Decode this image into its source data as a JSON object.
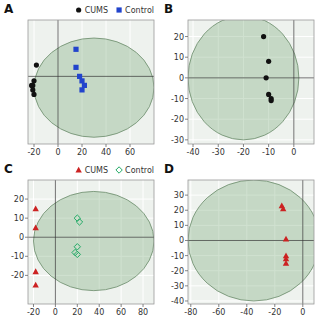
{
  "chart_data": [
    {
      "type": "scatter",
      "title": "A",
      "xlim": [
        -25,
        80
      ],
      "ylim": [
        -30,
        25
      ],
      "xticks": [
        -20,
        0,
        20,
        40,
        60
      ],
      "yticks": [],
      "tick_labels": "x",
      "grid": true,
      "legend": "upper right",
      "ellipse": {
        "cx": 30,
        "cy": -5,
        "rx": 50,
        "ry": 22
      },
      "hline": 0,
      "vline": 0,
      "series": [
        {
          "name": "CUMS",
          "color": "#111111",
          "marker": "circle",
          "x": [
            -20,
            -21,
            -21,
            -20,
            -22,
            -18
          ],
          "values": [
            -2,
            -4,
            -6,
            -8,
            -4,
            5
          ]
        },
        {
          "name": "Control",
          "color": "#2244cc",
          "marker": "square",
          "x": [
            15,
            15,
            18,
            20,
            22,
            20
          ],
          "values": [
            12,
            4,
            0,
            -2,
            -4,
            -6
          ]
        }
      ]
    },
    {
      "type": "scatter",
      "title": "B",
      "xlim": [
        -42,
        8
      ],
      "ylim": [
        -32,
        28
      ],
      "xticks": [
        -40,
        -30,
        -20,
        -10,
        0
      ],
      "yticks": [
        20,
        10,
        0,
        -10,
        -20,
        -30
      ],
      "grid": true,
      "ellipse": {
        "cx": -20,
        "cy": 0,
        "rx": 22,
        "ry": 30
      },
      "hline": 0,
      "vline": 0,
      "series": [
        {
          "color": "#111111",
          "marker": "circle",
          "x": [
            -12,
            -10,
            -11,
            -10,
            -9,
            -9
          ],
          "values": [
            20,
            8,
            0,
            -8,
            -10,
            -11
          ]
        }
      ]
    },
    {
      "type": "scatter",
      "title": "C",
      "xlim": [
        -25,
        90
      ],
      "ylim": [
        -35,
        30
      ],
      "xticks": [
        -20,
        0,
        20,
        40,
        60,
        80
      ],
      "yticks": [
        20,
        10,
        0,
        -10,
        -20
      ],
      "grid": true,
      "legend": "upper right",
      "ellipse": {
        "cx": 35,
        "cy": -2,
        "rx": 55,
        "ry": 26
      },
      "hline": 0,
      "vline": 0,
      "series": [
        {
          "name": "CUMS",
          "color": "#cc2222",
          "marker": "triangle",
          "x": [
            -18,
            -18,
            -18,
            -18
          ],
          "values": [
            15,
            5,
            -18,
            -25
          ]
        },
        {
          "name": "Control",
          "color": "#22aa66",
          "marker": "diamond",
          "x": [
            20,
            22,
            20,
            18,
            20
          ],
          "values": [
            10,
            8,
            -5,
            -8,
            -9
          ]
        }
      ]
    },
    {
      "type": "scatter",
      "title": "D",
      "xlim": [
        -82,
        8
      ],
      "ylim": [
        -42,
        40
      ],
      "xticks": [
        -80,
        -60,
        -40,
        -20,
        0
      ],
      "yticks": [
        30,
        20,
        10,
        0,
        -10,
        -20,
        -30,
        -40
      ],
      "grid": true,
      "ellipse": {
        "cx": -35,
        "cy": 0,
        "rx": 47,
        "ry": 40
      },
      "hline": 0,
      "vline": 0,
      "series": [
        {
          "color": "#cc2222",
          "marker": "triangle",
          "x": [
            -15,
            -14,
            -12,
            -12,
            -12,
            -12
          ],
          "values": [
            23,
            21,
            1,
            -10,
            -12,
            -15
          ]
        }
      ]
    }
  ]
}
